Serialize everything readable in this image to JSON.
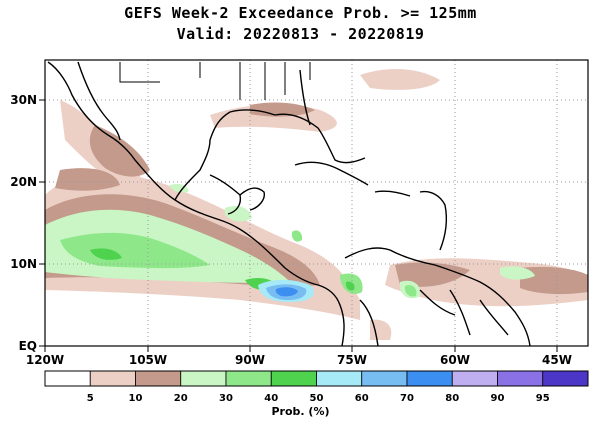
{
  "map": {
    "title_line1": "GEFS Week-2 Exceedance Prob. >= 125mm",
    "title_line2": "Valid: 20220813 - 20220819",
    "lat_labels": [
      "30N",
      "20N",
      "10N",
      "EQ"
    ],
    "lon_labels": [
      "120W",
      "105W",
      "90W",
      "75W",
      "60W",
      "45W"
    ],
    "extent": {
      "lon_min": -120,
      "lon_max": -42,
      "lat_min": 0,
      "lat_max": 35
    },
    "gridlines": "dotted",
    "colorbar": {
      "title": "Prob. (%)",
      "labels": [
        "5",
        "10",
        "20",
        "30",
        "40",
        "50",
        "60",
        "70",
        "80",
        "90",
        "95"
      ],
      "colors": [
        "#ffffff",
        "#ecd0c6",
        "#c39a8b",
        "#c9f6c4",
        "#8ee88a",
        "#4fd34f",
        "#a6e9f7",
        "#78bdf2",
        "#3c8ef0",
        "#bfaef0",
        "#8a72e6",
        "#4c36c8"
      ]
    }
  }
}
